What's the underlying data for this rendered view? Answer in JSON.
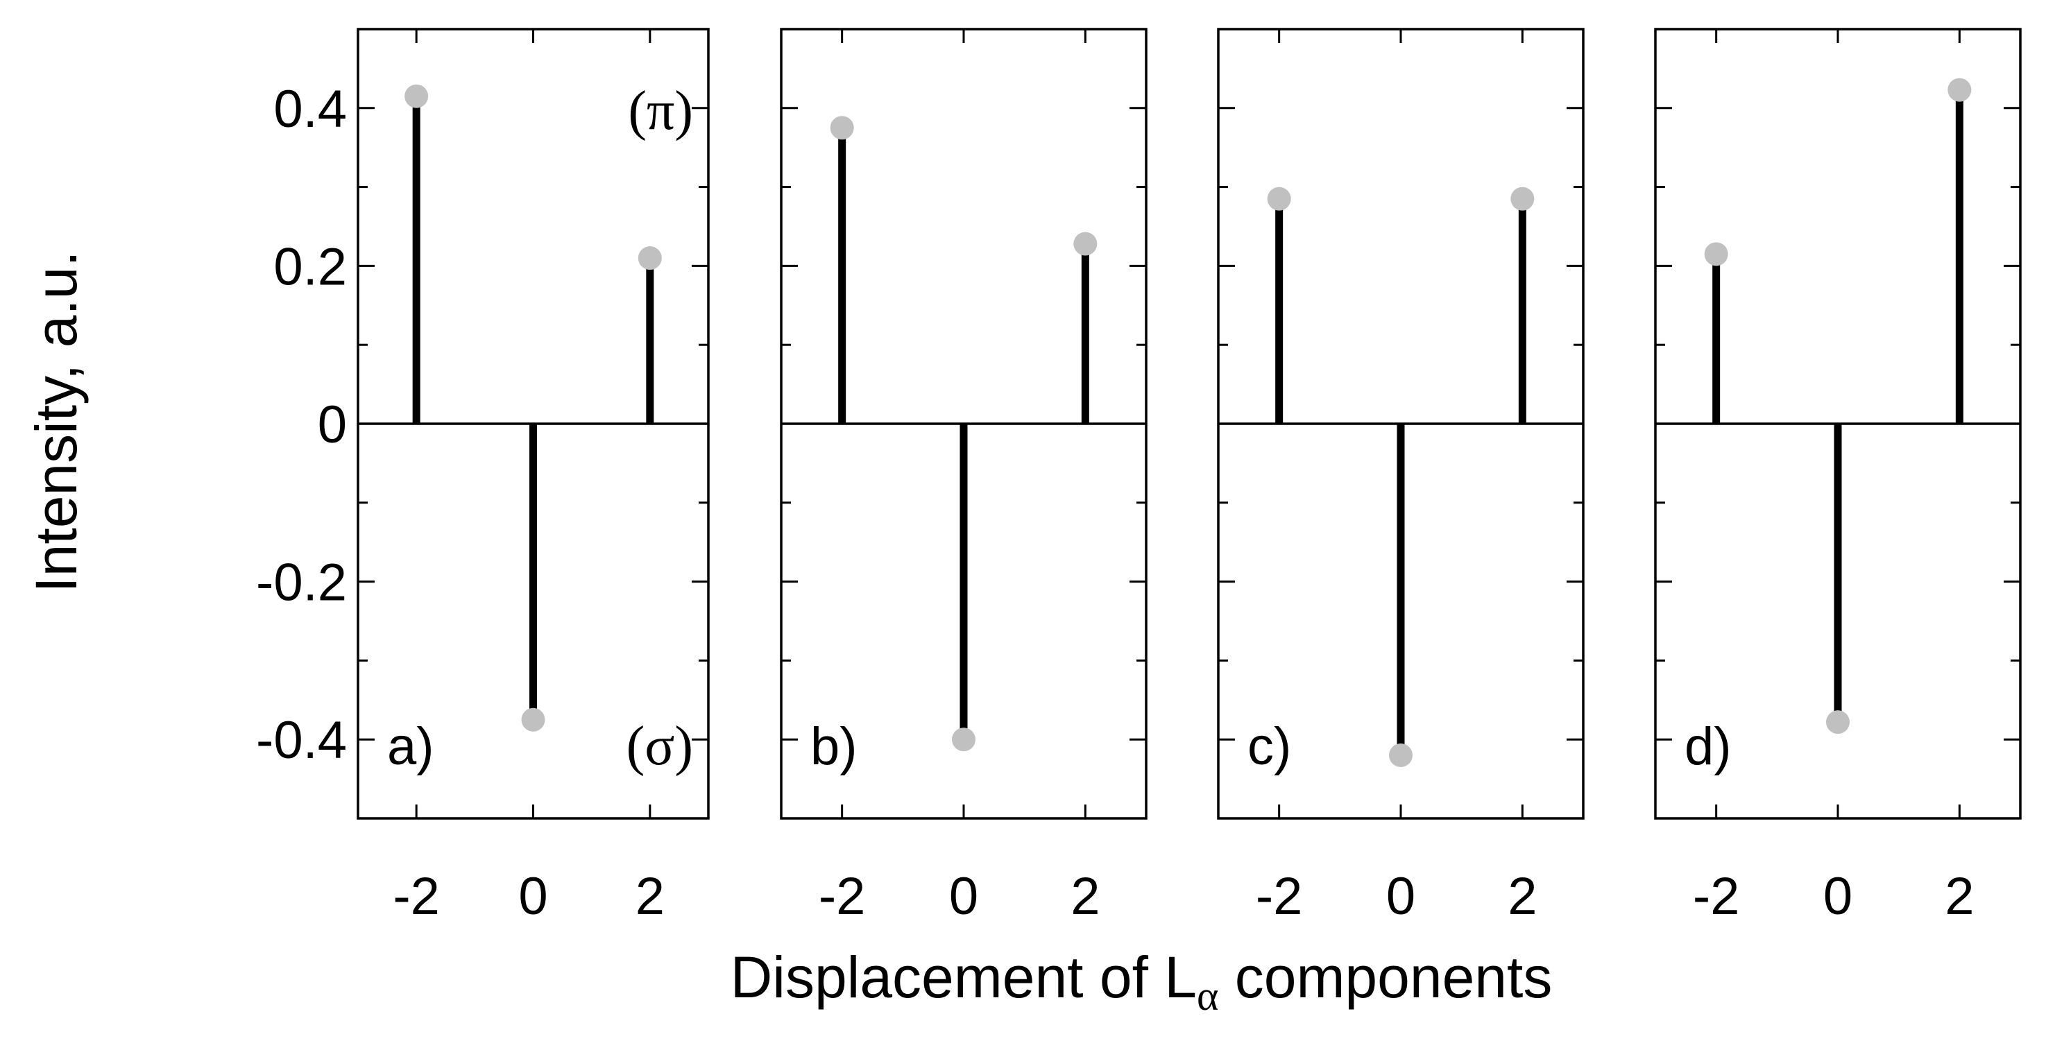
{
  "chart_data": {
    "type": "stem",
    "ylabel": "Intensity, a.u.",
    "xlabel_main": "Displacement of L",
    "xlabel_subscript": "α",
    "xlabel_suffix": " components",
    "ylim": [
      -0.5,
      0.5
    ],
    "y_ticks": [
      0.4,
      0.2,
      0,
      -0.2,
      -0.4
    ],
    "y_tick_labels": [
      "0.4",
      "0.2",
      "0",
      "-0.2",
      "-0.4"
    ],
    "x_ticks": [
      -2,
      0,
      2
    ],
    "x_tick_labels": [
      "-2",
      "0",
      "2"
    ],
    "xlim": [
      -3,
      3
    ],
    "grid": false,
    "marker_color": "#c0c0c0",
    "stem_color": "#000000",
    "pi_label": "(π)",
    "sigma_label": "(σ)",
    "panels": [
      {
        "label": "a)",
        "x": [
          -2,
          0,
          2
        ],
        "values": [
          0.415,
          -0.375,
          0.21
        ]
      },
      {
        "label": "b)",
        "x": [
          -2,
          0,
          2
        ],
        "values": [
          0.375,
          -0.4,
          0.228
        ]
      },
      {
        "label": "c)",
        "x": [
          -2,
          0,
          2
        ],
        "values": [
          0.285,
          -0.42,
          0.285
        ]
      },
      {
        "label": "d)",
        "x": [
          -2,
          0,
          2
        ],
        "values": [
          0.215,
          -0.378,
          0.423
        ]
      }
    ]
  }
}
